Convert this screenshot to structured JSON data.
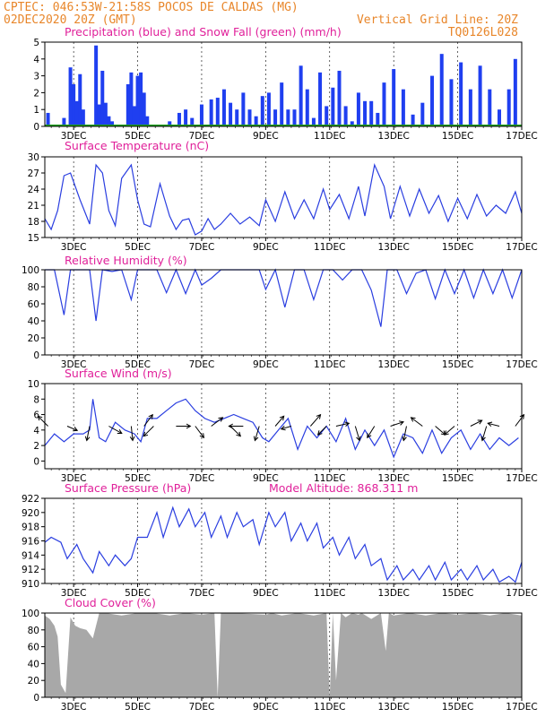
{
  "header": {
    "line1": "CPTEC:   046:53W-21:58S   POCOS DE CALDAS (MG)",
    "line2": "02DEC2020 20Z (GMT)",
    "grid_note": "Vertical Grid Line: 20Z",
    "code": "TQ0126L028"
  },
  "colors": {
    "header_text": "#e8862a",
    "panel_title": "#e0209a",
    "line": "#2a3ee0",
    "precip": "#1f3ff0",
    "snow": "#1fa01f",
    "cloud": "#a8a8a8",
    "frame": "#000000"
  },
  "x_axis": {
    "labels": [
      "3DEC",
      "5DEC",
      "7DEC",
      "9DEC",
      "11DEC",
      "13DEC",
      "15DEC",
      "17DEC"
    ],
    "label_days": [
      3,
      5,
      7,
      9,
      11,
      13,
      15,
      17
    ],
    "domain": [
      2.1,
      17.0
    ],
    "grid_hour": "20Z"
  },
  "chart_data": [
    {
      "type": "bar",
      "title": "Precipitation (blue) and Snow Fall (green) (mm/h)",
      "ylim": [
        0,
        5
      ],
      "yticks": [
        0,
        1,
        2,
        3,
        4,
        5
      ],
      "series": [
        {
          "name": "Precipitation",
          "x": [
            2.2,
            2.7,
            2.9,
            3.0,
            3.1,
            3.2,
            3.3,
            3.7,
            3.8,
            3.9,
            4.0,
            4.1,
            4.2,
            4.7,
            4.8,
            4.9,
            5.0,
            5.1,
            5.2,
            5.3,
            6.0,
            6.3,
            6.5,
            6.7,
            7.0,
            7.3,
            7.5,
            7.7,
            7.9,
            8.1,
            8.3,
            8.5,
            8.7,
            8.9,
            9.1,
            9.3,
            9.5,
            9.7,
            9.9,
            10.1,
            10.3,
            10.5,
            10.7,
            10.9,
            11.1,
            11.3,
            11.5,
            11.7,
            11.9,
            12.1,
            12.3,
            12.5,
            12.7,
            13.0,
            13.3,
            13.6,
            13.9,
            14.2,
            14.5,
            14.8,
            15.1,
            15.4,
            15.7,
            16.0,
            16.3,
            16.6,
            16.8
          ],
          "values": [
            0.8,
            0.5,
            3.5,
            2.5,
            1.5,
            3.1,
            1.0,
            4.8,
            1.3,
            3.3,
            1.4,
            0.6,
            0.3,
            2.5,
            3.2,
            1.2,
            3.0,
            3.2,
            2.0,
            0.6,
            0.3,
            0.8,
            1.0,
            0.5,
            1.3,
            1.6,
            1.7,
            2.2,
            1.4,
            1.0,
            2.0,
            1.0,
            0.6,
            1.8,
            2.0,
            1.0,
            2.6,
            1.0,
            1.0,
            3.6,
            2.2,
            0.5,
            3.2,
            1.2,
            2.3,
            3.3,
            1.2,
            0.3,
            2.0,
            1.5,
            1.5,
            0.8,
            2.6,
            3.4,
            2.2,
            0.7,
            1.4,
            3.0,
            4.3,
            2.8,
            3.8,
            2.2,
            3.6,
            2.2,
            1.0,
            2.2,
            4.0
          ]
        },
        {
          "name": "Snow Fall",
          "x": [
            2.1,
            17.0
          ],
          "values": [
            0,
            0
          ]
        }
      ]
    },
    {
      "type": "line",
      "title": "Surface Temperature (nC)",
      "ylim": [
        15,
        30
      ],
      "yticks": [
        15,
        18,
        21,
        24,
        27,
        30
      ],
      "x": [
        2.1,
        2.3,
        2.5,
        2.7,
        2.9,
        3.2,
        3.5,
        3.7,
        3.9,
        4.1,
        4.3,
        4.5,
        4.8,
        5.0,
        5.2,
        5.4,
        5.7,
        6.0,
        6.2,
        6.4,
        6.6,
        6.8,
        7.0,
        7.2,
        7.4,
        7.6,
        7.9,
        8.2,
        8.5,
        8.8,
        9.0,
        9.3,
        9.6,
        9.9,
        10.2,
        10.5,
        10.8,
        11.0,
        11.3,
        11.6,
        11.9,
        12.1,
        12.4,
        12.7,
        12.9,
        13.2,
        13.5,
        13.8,
        14.1,
        14.4,
        14.7,
        15.0,
        15.3,
        15.6,
        15.9,
        16.2,
        16.5,
        16.8,
        17.0
      ],
      "values": [
        18.5,
        16.5,
        20,
        26.5,
        27,
        22,
        17.5,
        28.5,
        27,
        20,
        17.2,
        26,
        28.5,
        22,
        17.5,
        17,
        25,
        19,
        16.5,
        18.2,
        18.5,
        15.5,
        16.2,
        18.5,
        16.5,
        17.5,
        19.5,
        17.5,
        18.8,
        17.2,
        22,
        18,
        23.5,
        18.5,
        22,
        18.5,
        24,
        20.2,
        23,
        18.5,
        24.5,
        19,
        28.5,
        24.5,
        18.5,
        24.5,
        19,
        24,
        19.5,
        22.8,
        18,
        22.3,
        18.5,
        23,
        19,
        21,
        19.5,
        23.5,
        19.5
      ]
    },
    {
      "type": "line",
      "title": "Relative Humidity (%)",
      "ylim": [
        0,
        100
      ],
      "yticks": [
        0,
        20,
        40,
        60,
        80,
        100
      ],
      "x": [
        2.1,
        2.4,
        2.7,
        2.9,
        3.2,
        3.5,
        3.7,
        3.9,
        4.2,
        4.5,
        4.8,
        5.0,
        5.3,
        5.6,
        5.9,
        6.2,
        6.5,
        6.8,
        7.0,
        7.3,
        7.6,
        8.0,
        8.4,
        8.8,
        9.0,
        9.3,
        9.6,
        9.9,
        10.2,
        10.5,
        10.8,
        11.1,
        11.4,
        11.7,
        12.0,
        12.3,
        12.6,
        12.8,
        13.1,
        13.4,
        13.7,
        14.0,
        14.3,
        14.6,
        14.9,
        15.2,
        15.5,
        15.8,
        16.1,
        16.4,
        16.7,
        17.0
      ],
      "values": [
        100,
        100,
        47,
        100,
        100,
        100,
        40,
        100,
        98,
        100,
        65,
        100,
        100,
        100,
        73,
        100,
        72,
        100,
        82,
        90,
        100,
        100,
        100,
        100,
        77,
        100,
        56,
        100,
        100,
        65,
        100,
        100,
        88,
        100,
        100,
        76,
        33,
        100,
        100,
        72,
        96,
        100,
        66,
        100,
        72,
        100,
        67,
        100,
        72,
        100,
        67,
        100
      ]
    },
    {
      "type": "line",
      "title": "Surface Wind (m/s)",
      "ylim": [
        -1,
        10
      ],
      "yticks": [
        0,
        2,
        4,
        6,
        8,
        10
      ],
      "x": [
        2.1,
        2.4,
        2.7,
        3.0,
        3.3,
        3.5,
        3.6,
        3.8,
        4.0,
        4.3,
        4.6,
        4.9,
        5.1,
        5.3,
        5.6,
        5.9,
        6.2,
        6.5,
        6.8,
        7.1,
        7.4,
        7.7,
        8.0,
        8.3,
        8.6,
        8.9,
        9.1,
        9.4,
        9.7,
        10.0,
        10.3,
        10.6,
        10.9,
        11.2,
        11.5,
        11.8,
        12.1,
        12.4,
        12.7,
        13.0,
        13.3,
        13.6,
        13.9,
        14.2,
        14.5,
        14.8,
        15.1,
        15.4,
        15.7,
        16.0,
        16.3,
        16.6,
        16.9
      ],
      "values": [
        2,
        3.5,
        2.5,
        3.5,
        3.5,
        4,
        8,
        3,
        2.5,
        5,
        4,
        3.5,
        2.5,
        5.5,
        5.5,
        6.5,
        7.5,
        8,
        6.5,
        5.5,
        5,
        5.5,
        6,
        5.5,
        5,
        3,
        2.5,
        4,
        5.5,
        1.5,
        4.5,
        3,
        4.5,
        2.5,
        5.5,
        1.5,
        4,
        2,
        4,
        0.5,
        3.5,
        3,
        1,
        4,
        1,
        3,
        4,
        1.5,
        3.5,
        1.5,
        3,
        2,
        3
      ],
      "arrows": [
        {
          "x": 2.2,
          "u": -0.7,
          "v": 0.7
        },
        {
          "x": 2.8,
          "u": 0.7,
          "v": -0.3
        },
        {
          "x": 3.5,
          "u": -0.2,
          "v": -1
        },
        {
          "x": 4.1,
          "u": 0.9,
          "v": -0.5
        },
        {
          "x": 4.8,
          "u": 0.1,
          "v": -1
        },
        {
          "x": 5.2,
          "u": 0.6,
          "v": 0.8
        },
        {
          "x": 5.5,
          "u": -0.7,
          "v": -0.7
        },
        {
          "x": 6.2,
          "u": 1,
          "v": 0
        },
        {
          "x": 6.8,
          "u": 0.6,
          "v": -0.8
        },
        {
          "x": 7.3,
          "u": 0.8,
          "v": 0.6
        },
        {
          "x": 7.9,
          "u": 0.7,
          "v": -0.7
        },
        {
          "x": 8.3,
          "u": -1,
          "v": 0
        },
        {
          "x": 8.8,
          "u": -0.3,
          "v": -1
        },
        {
          "x": 9.3,
          "u": 0.6,
          "v": 0.7
        },
        {
          "x": 9.8,
          "u": -0.7,
          "v": -0.2
        },
        {
          "x": 10.4,
          "u": 0.7,
          "v": 0.8
        },
        {
          "x": 10.9,
          "u": -0.6,
          "v": -0.6
        },
        {
          "x": 11.2,
          "u": 0.9,
          "v": 0.2
        },
        {
          "x": 11.8,
          "u": 0.3,
          "v": -1
        },
        {
          "x": 12.4,
          "u": -0.5,
          "v": -0.8
        },
        {
          "x": 12.9,
          "u": 0.9,
          "v": 0.3
        },
        {
          "x": 13.4,
          "u": -0.2,
          "v": -1
        },
        {
          "x": 13.9,
          "u": -0.8,
          "v": 0.6
        },
        {
          "x": 14.3,
          "u": 0.7,
          "v": -0.6
        },
        {
          "x": 14.9,
          "u": -0.7,
          "v": -0.6
        },
        {
          "x": 15.4,
          "u": 0.8,
          "v": 0.4
        },
        {
          "x": 15.9,
          "u": -0.3,
          "v": -1
        },
        {
          "x": 16.3,
          "u": -0.8,
          "v": 0.2
        },
        {
          "x": 16.8,
          "u": 0.6,
          "v": 0.8
        }
      ]
    },
    {
      "type": "line",
      "title": "Surface Pressure (hPa)",
      "annotation": "Model Altitude: 868.311  m",
      "ylim": [
        910,
        922
      ],
      "yticks": [
        910,
        912,
        914,
        916,
        918,
        920,
        922
      ],
      "x": [
        2.1,
        2.3,
        2.6,
        2.8,
        3.1,
        3.3,
        3.6,
        3.8,
        4.1,
        4.3,
        4.6,
        4.8,
        5.0,
        5.3,
        5.6,
        5.8,
        6.1,
        6.3,
        6.6,
        6.8,
        7.1,
        7.3,
        7.6,
        7.8,
        8.1,
        8.3,
        8.6,
        8.8,
        9.1,
        9.3,
        9.6,
        9.8,
        10.1,
        10.3,
        10.6,
        10.8,
        11.1,
        11.3,
        11.6,
        11.8,
        12.1,
        12.3,
        12.6,
        12.8,
        13.1,
        13.3,
        13.6,
        13.8,
        14.1,
        14.3,
        14.6,
        14.8,
        15.1,
        15.3,
        15.6,
        15.8,
        16.1,
        16.3,
        16.6,
        16.8,
        17.0
      ],
      "values": [
        915.8,
        916.5,
        915.8,
        913.5,
        915.5,
        913.5,
        911.5,
        914.5,
        912.5,
        914,
        912.5,
        913.5,
        916.5,
        916.5,
        920,
        916.5,
        920.7,
        918,
        920.5,
        918,
        920,
        916.5,
        919.5,
        916.5,
        920,
        918,
        919,
        915.5,
        920,
        918,
        920,
        916,
        918.5,
        916,
        918.5,
        915,
        916.5,
        914,
        916.5,
        913.5,
        915.5,
        912.5,
        913.5,
        910.5,
        912.5,
        910.5,
        912,
        910.5,
        912.5,
        910.5,
        913,
        910.5,
        912,
        910.5,
        912.5,
        910.5,
        912,
        910.2,
        911,
        910.2,
        913
      ]
    },
    {
      "type": "area",
      "title": "Cloud Cover (%)",
      "ylim": [
        0,
        100
      ],
      "yticks": [
        0,
        20,
        40,
        60,
        80,
        100
      ],
      "x": [
        2.1,
        2.25,
        2.4,
        2.5,
        2.6,
        2.75,
        2.9,
        3.05,
        3.2,
        3.4,
        3.6,
        3.8,
        4.0,
        4.5,
        5.0,
        5.5,
        6.0,
        6.5,
        7.0,
        7.4,
        7.5,
        7.6,
        8.0,
        9.0,
        9.2,
        9.5,
        10.0,
        10.5,
        10.9,
        11.0,
        11.1,
        11.2,
        11.35,
        11.5,
        11.7,
        11.9,
        12.0,
        12.3,
        12.6,
        12.75,
        12.85,
        13.0,
        13.5,
        14.0,
        14.5,
        15.0,
        15.5,
        16.0,
        16.5,
        17.0
      ],
      "values": [
        97,
        93,
        85,
        72,
        15,
        5,
        95,
        85,
        82,
        80,
        70,
        100,
        100,
        97,
        100,
        100,
        97,
        100,
        98,
        100,
        0,
        100,
        100,
        98,
        100,
        97,
        100,
        97,
        100,
        0,
        100,
        20,
        100,
        95,
        100,
        98,
        100,
        93,
        100,
        55,
        100,
        97,
        100,
        97,
        100,
        98,
        100,
        97,
        100,
        97
      ]
    }
  ]
}
